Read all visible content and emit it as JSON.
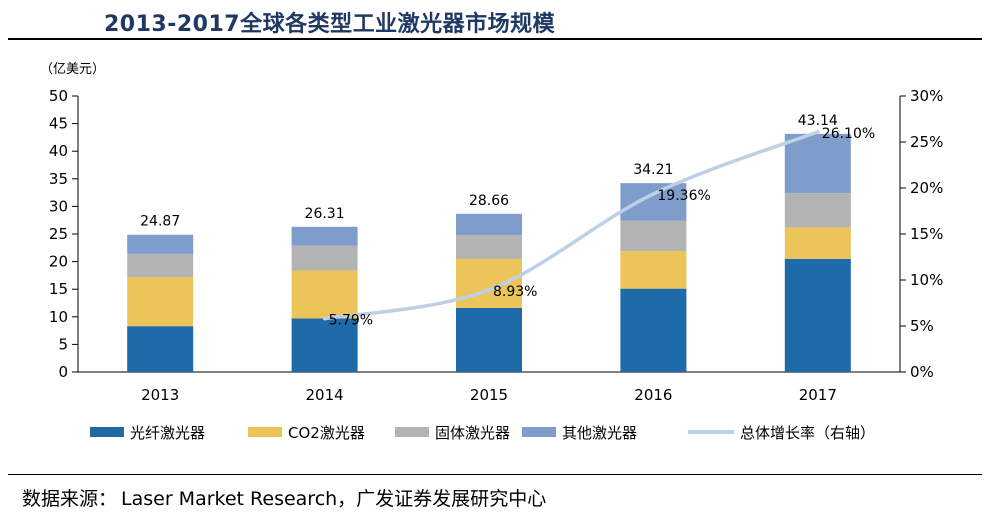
{
  "header": {
    "title": "2013-2017全球各类型工业激光器市场规模"
  },
  "footer": {
    "source_label": "数据来源：",
    "source_text": "Laser Market Research，广发证券发展研究中心"
  },
  "chart_data": {
    "type": "bar",
    "stacked": true,
    "title": "2013-2017全球各类型工业激光器市场规模",
    "unit_label": "（亿美元）",
    "categories": [
      "2013",
      "2014",
      "2015",
      "2016",
      "2017"
    ],
    "series": [
      {
        "name": "光纤激光器",
        "color": "#1f6aa8",
        "values": [
          8.3,
          9.7,
          11.6,
          15.1,
          20.5
        ]
      },
      {
        "name": "CO2激光器",
        "color": "#ebc55a",
        "values": [
          8.9,
          8.7,
          8.9,
          6.8,
          5.7
        ]
      },
      {
        "name": "固体激光器",
        "color": "#b3b3b3",
        "values": [
          4.2,
          4.5,
          4.3,
          5.5,
          6.2
        ]
      },
      {
        "name": "其他激光器",
        "color": "#7f9dcb",
        "values": [
          3.47,
          3.41,
          3.86,
          6.81,
          10.74
        ]
      }
    ],
    "totals": [
      "24.87",
      "26.31",
      "28.66",
      "34.21",
      "43.14"
    ],
    "growth_line": {
      "name": "总体增长率（右轴）",
      "color": "#bdd1e6",
      "x_categories": [
        "2014",
        "2015",
        "2016",
        "2017"
      ],
      "values": [
        5.79,
        8.93,
        19.36,
        26.1
      ],
      "labels": [
        "5.79%",
        "8.93%",
        "19.36%",
        "26.10%"
      ]
    },
    "y_left": {
      "min": 0,
      "max": 50,
      "ticks": [
        "0",
        "5",
        "10",
        "15",
        "20",
        "25",
        "30",
        "35",
        "40",
        "45",
        "50"
      ]
    },
    "y_right": {
      "min": 0,
      "max": 30,
      "ticks": [
        "0%",
        "5%",
        "10%",
        "15%",
        "20%",
        "25%",
        "30%"
      ]
    },
    "legend_position": "bottom"
  }
}
